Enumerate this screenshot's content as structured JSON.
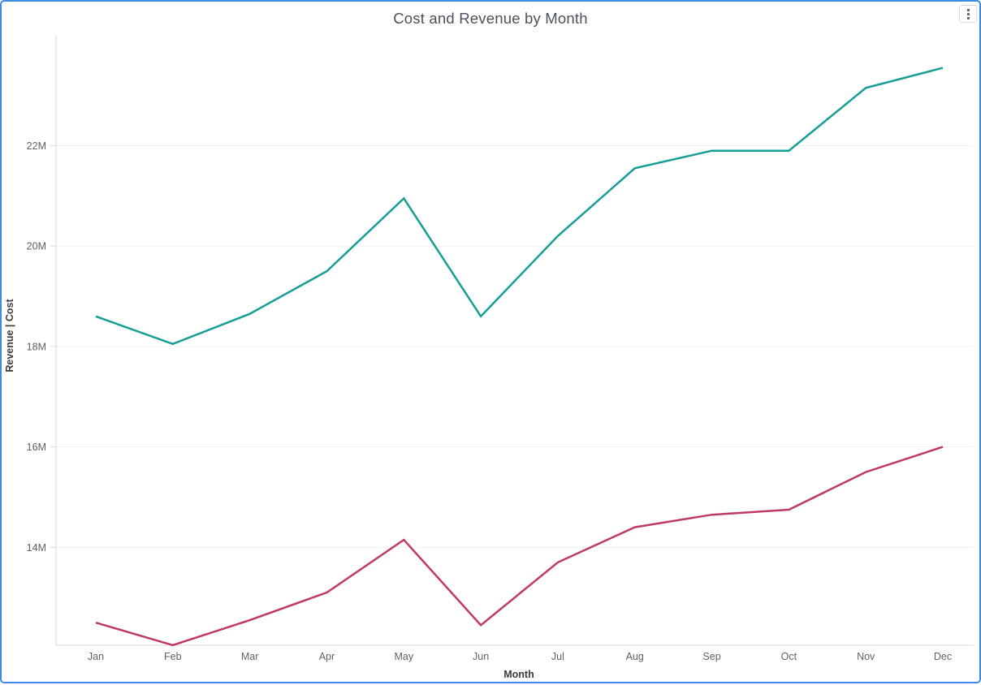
{
  "header": {
    "title": "Cost and Revenue by Month",
    "menu_icon": "kebab-vertical-icon"
  },
  "colors": {
    "card_border": "#3d8be4",
    "gridline": "#f1f1f1",
    "axis_line": "#d9d9d9",
    "revenue_line": "#169e96",
    "cost_line": "#be3968"
  },
  "chart_data": {
    "type": "line",
    "title": "Cost and Revenue by Month",
    "xlabel": "Month",
    "ylabel": "Revenue | Cost",
    "value_unit": "M",
    "grid": "horizontal-only",
    "legend_position": "none",
    "categories": [
      "Jan",
      "Feb",
      "Mar",
      "Apr",
      "May",
      "Jun",
      "Jul",
      "Aug",
      "Sep",
      "Oct",
      "Nov",
      "Dec"
    ],
    "series": [
      {
        "name": "Revenue",
        "color": "#169e96",
        "values": [
          18.6,
          18.05,
          18.65,
          19.5,
          20.95,
          18.6,
          20.2,
          21.55,
          21.9,
          21.9,
          23.15,
          23.55
        ]
      },
      {
        "name": "Cost",
        "color": "#be3968",
        "values": [
          12.5,
          12.05,
          12.55,
          13.1,
          14.15,
          12.45,
          13.7,
          14.4,
          14.65,
          14.75,
          15.5,
          16.0
        ]
      }
    ],
    "y_ticks": [
      {
        "value": 14,
        "label": "14M"
      },
      {
        "value": 16,
        "label": "16M"
      },
      {
        "value": 18,
        "label": "18M"
      },
      {
        "value": 20,
        "label": "20M"
      },
      {
        "value": 22,
        "label": "22M"
      }
    ],
    "ylim": [
      12.05,
      24.19
    ]
  }
}
